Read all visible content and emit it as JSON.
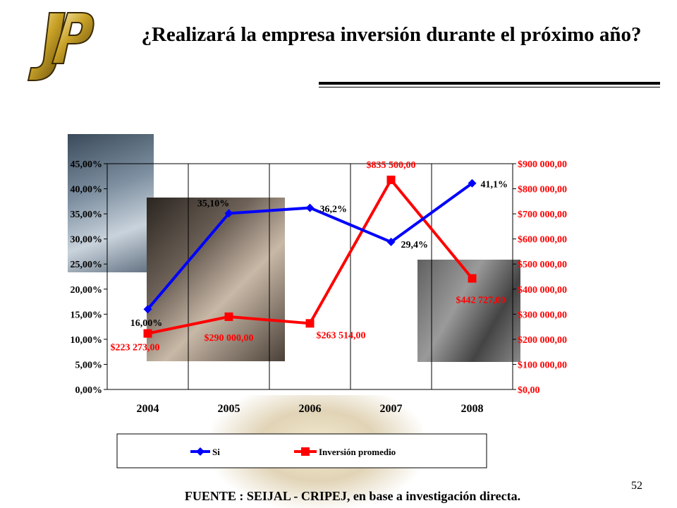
{
  "slide": {
    "title": "¿Realizará la empresa inversión durante el próximo año?",
    "source": "FUENTE : SEIJAL - CRIPEJ, en base a investigación directa.",
    "page_number": "52",
    "logo_text": "JP"
  },
  "chart_data": {
    "type": "line",
    "categories": [
      "2004",
      "2005",
      "2006",
      "2007",
      "2008"
    ],
    "series": [
      {
        "name": "Si",
        "axis": "left",
        "color": "#0000ff",
        "marker": "diamond",
        "values": [
          16.0,
          35.1,
          36.2,
          29.4,
          41.1
        ],
        "labels": [
          "16,00%",
          "35,10%",
          "36,2%",
          "29,4%",
          "41,1%"
        ]
      },
      {
        "name": "Inversión promedio",
        "axis": "right",
        "color": "#ff0000",
        "marker": "square",
        "values": [
          223273,
          290000,
          263514,
          835500,
          442727
        ],
        "labels": [
          "$223 273,00",
          "$290 000,00",
          "$263 514,00",
          "$835 500,00",
          "$442 727,00"
        ]
      }
    ],
    "y_left": {
      "ylim": [
        0,
        45
      ],
      "ticks": [
        "0,00%",
        "5,00%",
        "10,00%",
        "15,00%",
        "20,00%",
        "25,00%",
        "30,00%",
        "35,00%",
        "40,00%",
        "45,00%"
      ]
    },
    "y_right": {
      "ylim": [
        0,
        900000
      ],
      "ticks": [
        "$0,00",
        "$100 000,00",
        "$200 000,00",
        "$300 000,00",
        "$400 000,00",
        "$500 000,00",
        "$600 000,00",
        "$700 000,00",
        "$800 000,00",
        "$900 000,00"
      ],
      "color": "#ff0000"
    },
    "grid": "vertical",
    "legend": "bottom"
  }
}
